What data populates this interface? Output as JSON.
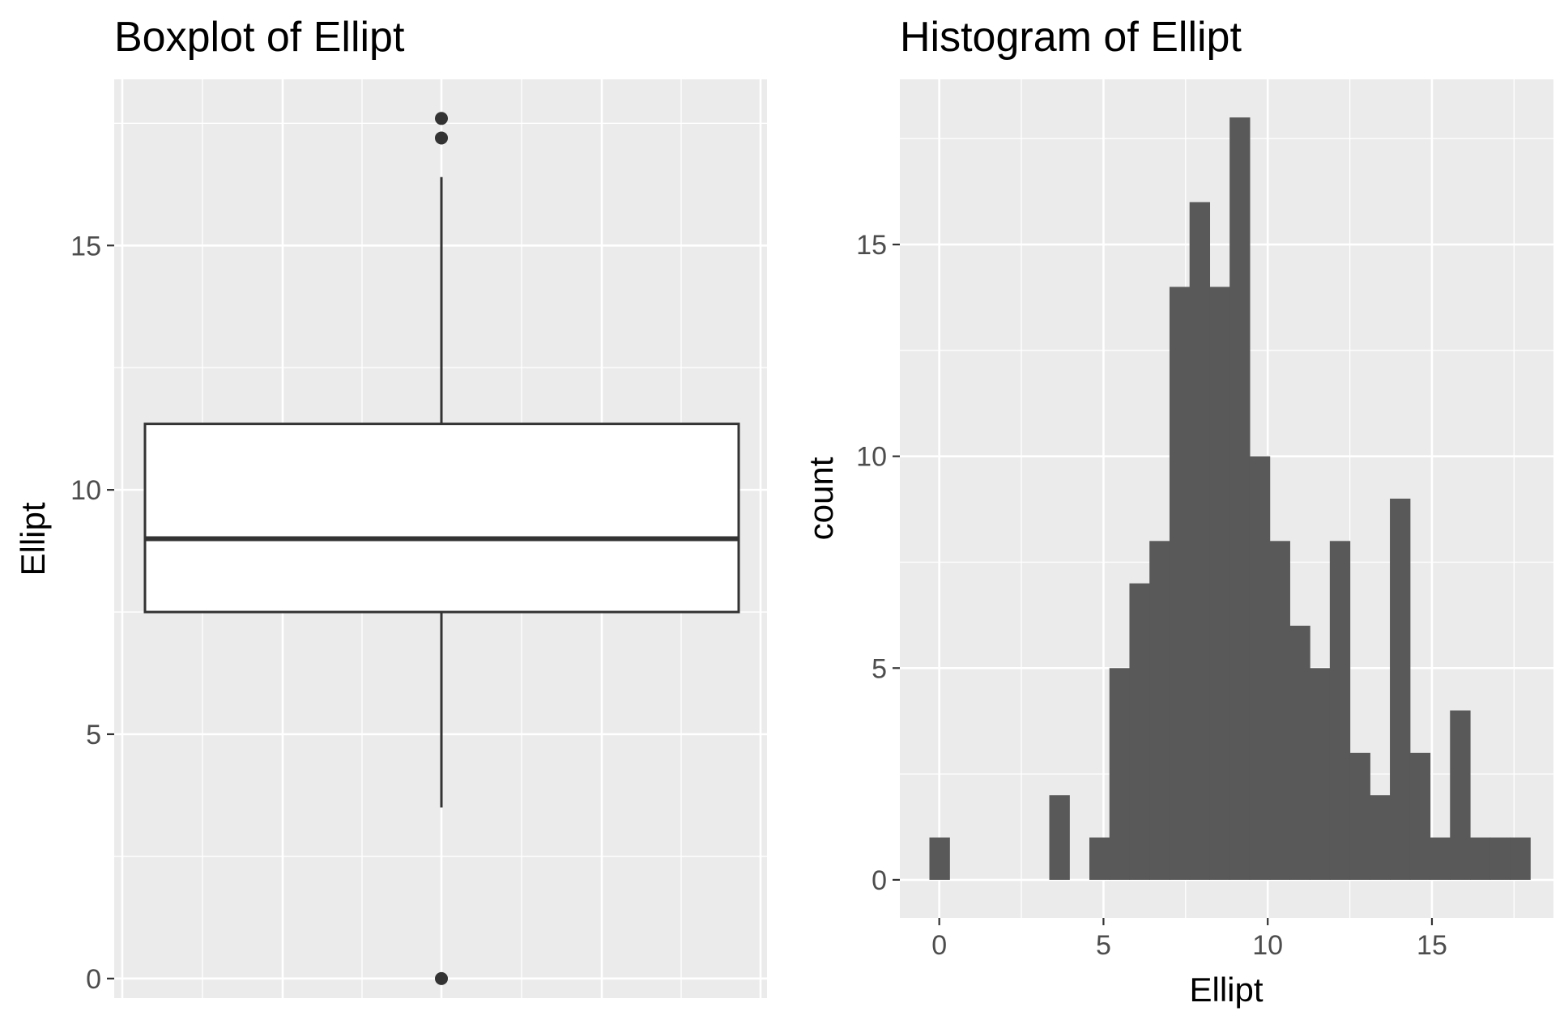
{
  "chart_data": [
    {
      "type": "boxplot",
      "title": "Boxplot of Ellipt",
      "xlabel": "",
      "ylabel": "Ellipt",
      "ylim": [
        -0.4,
        18.4
      ],
      "yticks": [
        0,
        5,
        10,
        15
      ],
      "grid": true,
      "box": {
        "lower_whisker": 3.5,
        "q1": 7.5,
        "median": 9.0,
        "q3": 11.35,
        "upper_whisker": 16.4,
        "outliers": [
          0.0,
          17.2,
          17.6
        ]
      }
    },
    {
      "type": "histogram",
      "title": "Histogram of Ellipt",
      "xlabel": "Ellipt",
      "ylabel": "count",
      "xlim": [
        -1.2,
        18.7
      ],
      "ylim": [
        -0.9,
        18.9
      ],
      "xticks": [
        0,
        5,
        10,
        15
      ],
      "yticks": [
        0,
        5,
        10,
        15
      ],
      "grid": true,
      "bin_width": 0.61,
      "bins": [
        {
          "x0": -0.3,
          "count": 1
        },
        {
          "x0": 3.35,
          "count": 2
        },
        {
          "x0": 4.57,
          "count": 1
        },
        {
          "x0": 5.18,
          "count": 5
        },
        {
          "x0": 5.79,
          "count": 7
        },
        {
          "x0": 6.4,
          "count": 8
        },
        {
          "x0": 7.01,
          "count": 14
        },
        {
          "x0": 7.62,
          "count": 16
        },
        {
          "x0": 8.23,
          "count": 14
        },
        {
          "x0": 8.84,
          "count": 18
        },
        {
          "x0": 9.45,
          "count": 10
        },
        {
          "x0": 10.06,
          "count": 8
        },
        {
          "x0": 10.67,
          "count": 6
        },
        {
          "x0": 11.28,
          "count": 5
        },
        {
          "x0": 11.89,
          "count": 8
        },
        {
          "x0": 12.5,
          "count": 3
        },
        {
          "x0": 13.11,
          "count": 2
        },
        {
          "x0": 13.72,
          "count": 9
        },
        {
          "x0": 14.33,
          "count": 3
        },
        {
          "x0": 14.94,
          "count": 1
        },
        {
          "x0": 15.55,
          "count": 4
        },
        {
          "x0": 16.16,
          "count": 1
        },
        {
          "x0": 16.77,
          "count": 1
        },
        {
          "x0": 17.38,
          "count": 1
        }
      ]
    }
  ]
}
